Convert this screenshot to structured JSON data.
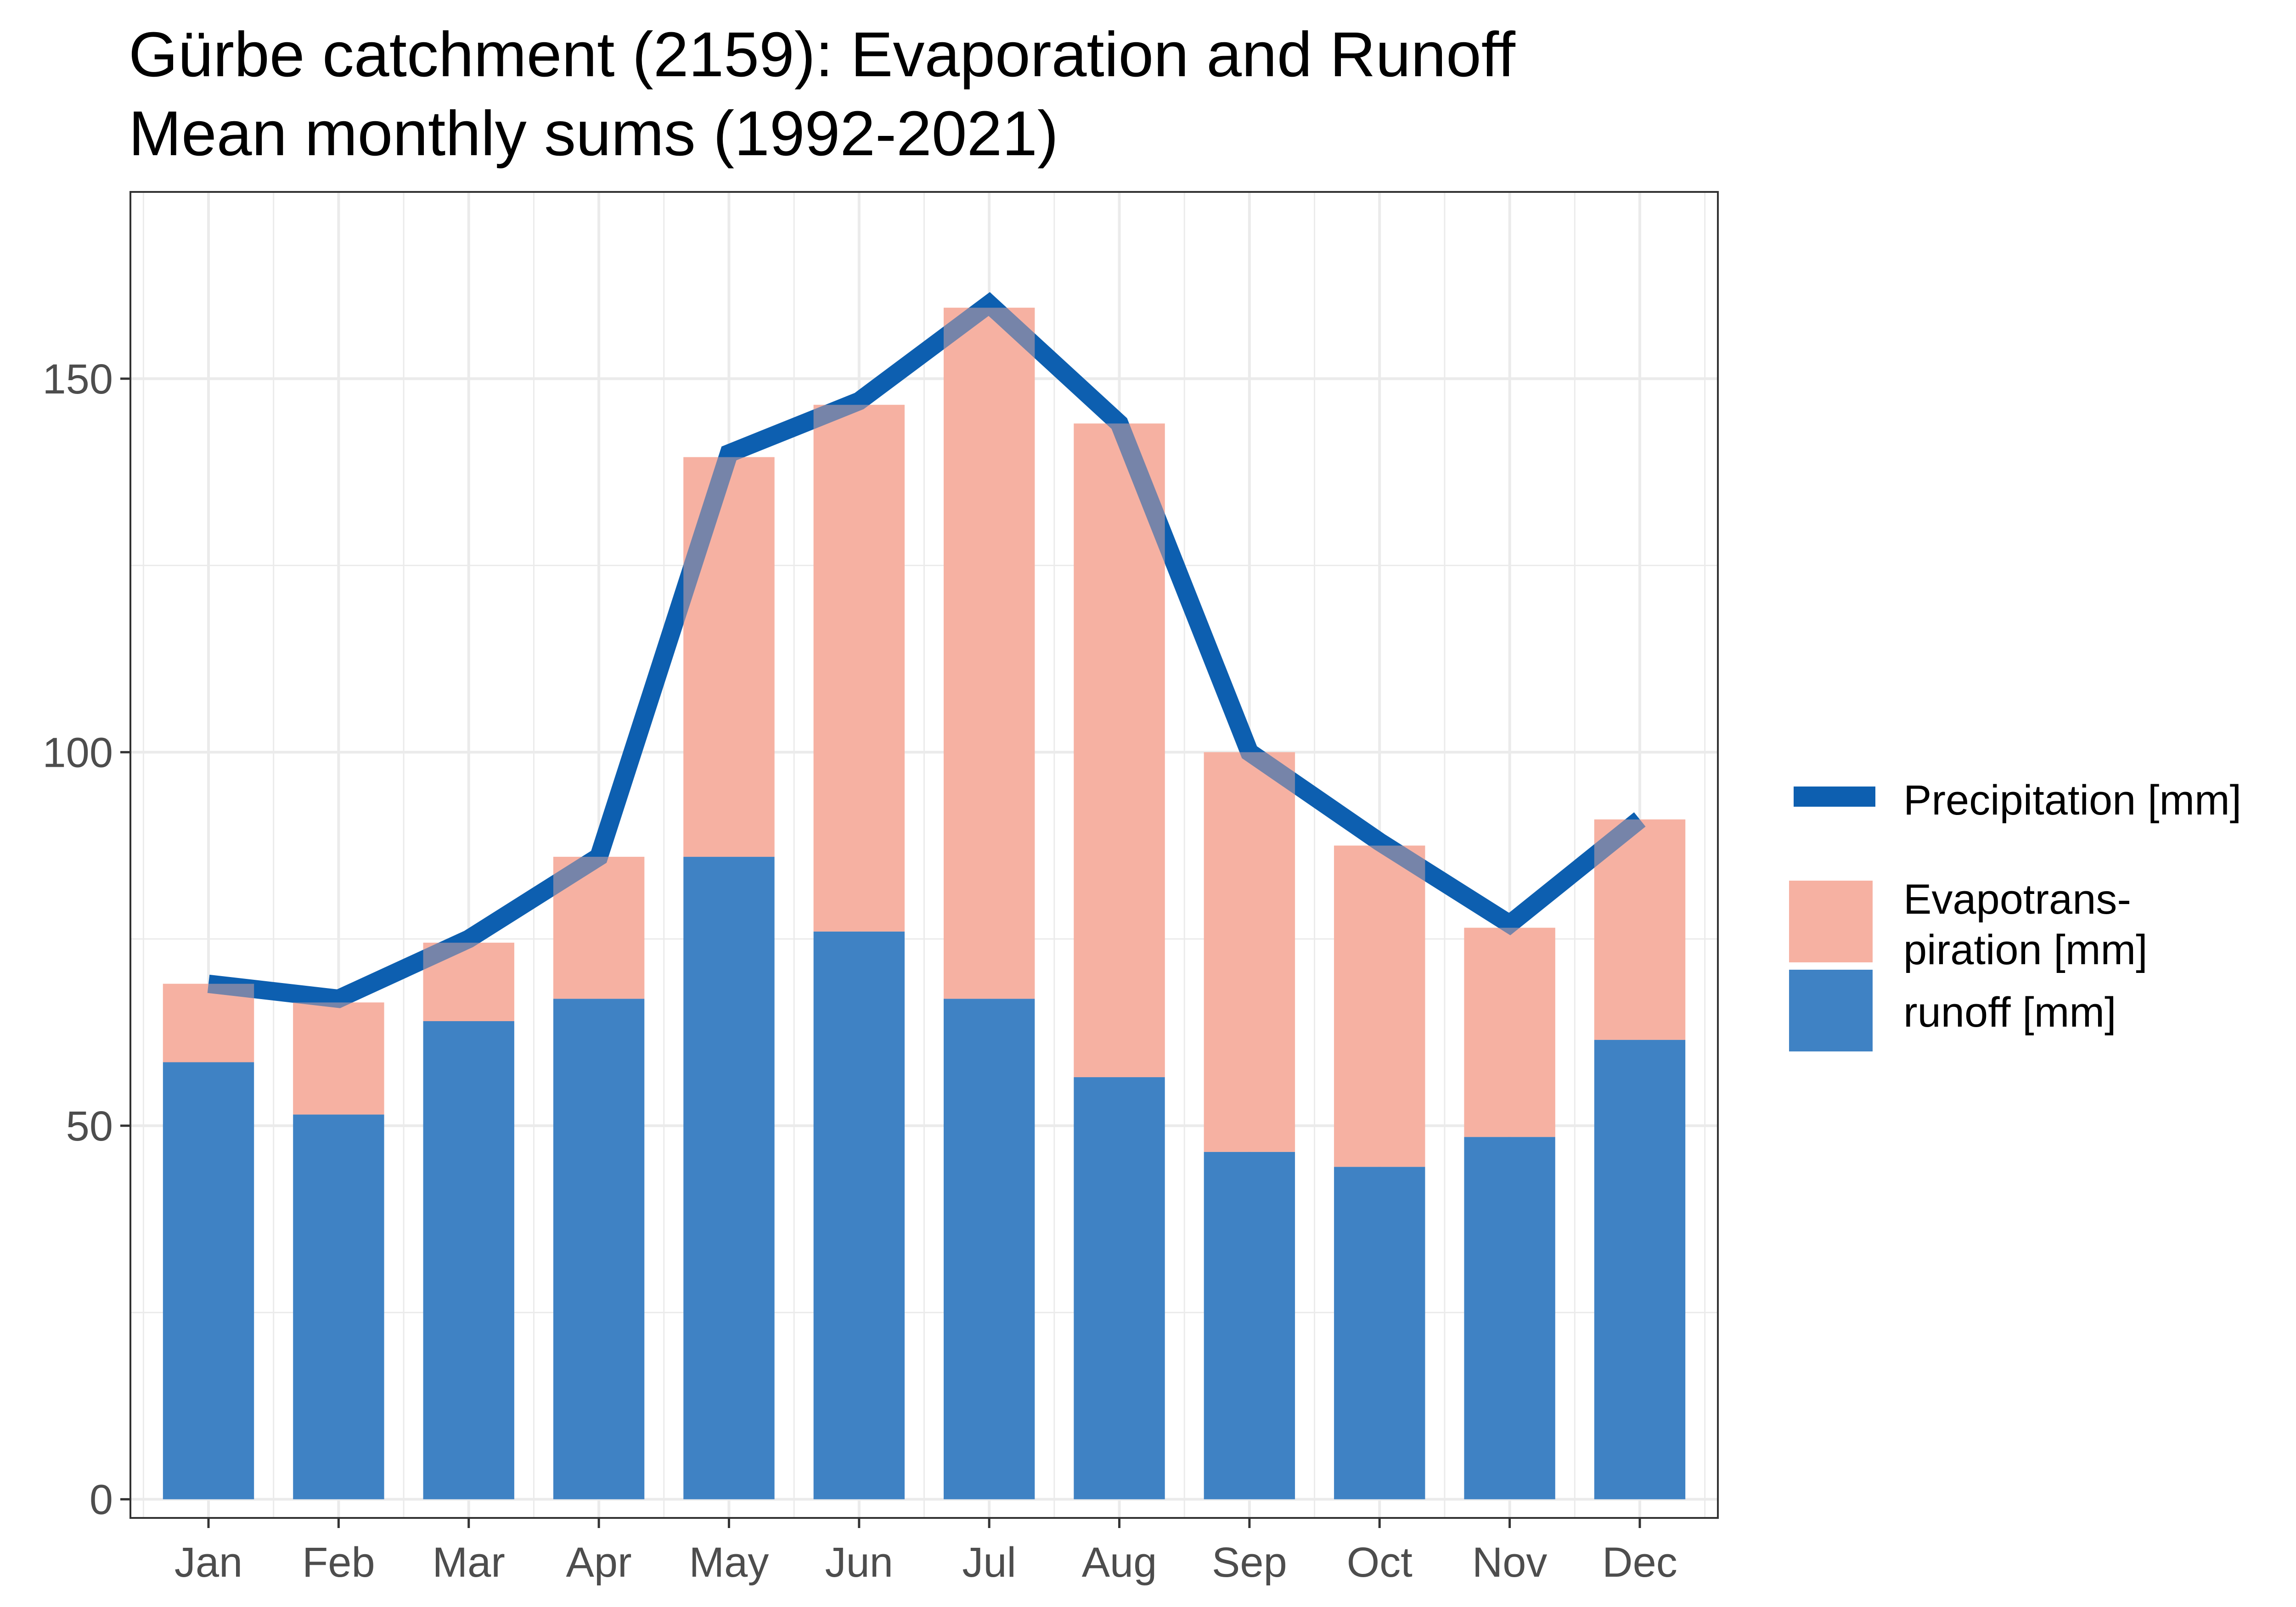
{
  "chart_data": {
    "type": "bar",
    "title": "Gürbe catchment (2159): Evaporation and Runoff",
    "subtitle": "Mean monthly sums (1992-2021)",
    "xlabel": "",
    "ylabel": "",
    "ylim": [
      -2.5,
      175
    ],
    "yticks": [
      0,
      50,
      100,
      150
    ],
    "ytick_labels": [
      "0",
      "50",
      "100",
      "150"
    ],
    "grid": true,
    "stacked": true,
    "categories": [
      "Jan",
      "Feb",
      "Mar",
      "Apr",
      "May",
      "Jun",
      "Jul",
      "Aug",
      "Sep",
      "Oct",
      "Nov",
      "Dec"
    ],
    "series": [
      {
        "name": "runoff [mm]",
        "type": "bar",
        "color": "#3f82c4",
        "values": [
          58.5,
          51.5,
          64.0,
          67.0,
          86.0,
          76.0,
          67.0,
          56.5,
          46.5,
          44.5,
          48.5,
          61.5
        ]
      },
      {
        "name": "Evapotrans-piration [mm]",
        "legend_lines": [
          "Evapotrans-",
          "piration [mm]"
        ],
        "type": "bar",
        "color": "#f6b1a2",
        "values": [
          10.5,
          15.0,
          10.5,
          19.0,
          53.5,
          70.5,
          92.5,
          87.5,
          53.5,
          43.0,
          28.0,
          29.5
        ]
      },
      {
        "name": "Precipitation [mm]",
        "type": "line",
        "color": "#0d5fb0",
        "values": [
          69,
          67,
          75,
          86,
          140,
          147,
          160,
          144,
          100,
          88,
          77,
          91
        ]
      }
    ],
    "legend_position": "right"
  }
}
